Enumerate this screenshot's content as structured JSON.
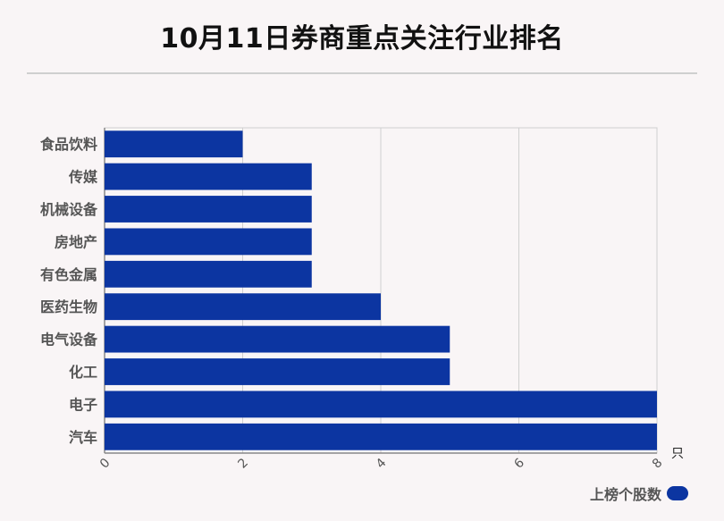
{
  "title": "10月11日券商重点关注行业排名",
  "colors": {
    "bar": "#0c35a1",
    "grid": "#d0d0d0",
    "axis": "#888888",
    "label": "#555555"
  },
  "chart_data": {
    "type": "bar",
    "orientation": "horizontal",
    "title": "10月11日券商重点关注行业排名",
    "categories": [
      "食品饮料",
      "传媒",
      "机械设备",
      "房地产",
      "有色金属",
      "医药生物",
      "电气设备",
      "化工",
      "电子",
      "汽车"
    ],
    "series": [
      {
        "name": "上榜个股数",
        "values": [
          2,
          3,
          3,
          3,
          3,
          4,
          5,
          5,
          8,
          8
        ]
      }
    ],
    "xticks": [
      "0",
      "2",
      "4",
      "6",
      "8"
    ],
    "xlim": [
      0,
      8
    ],
    "xunit": "只",
    "grid": true,
    "legend": "bottom-right"
  }
}
